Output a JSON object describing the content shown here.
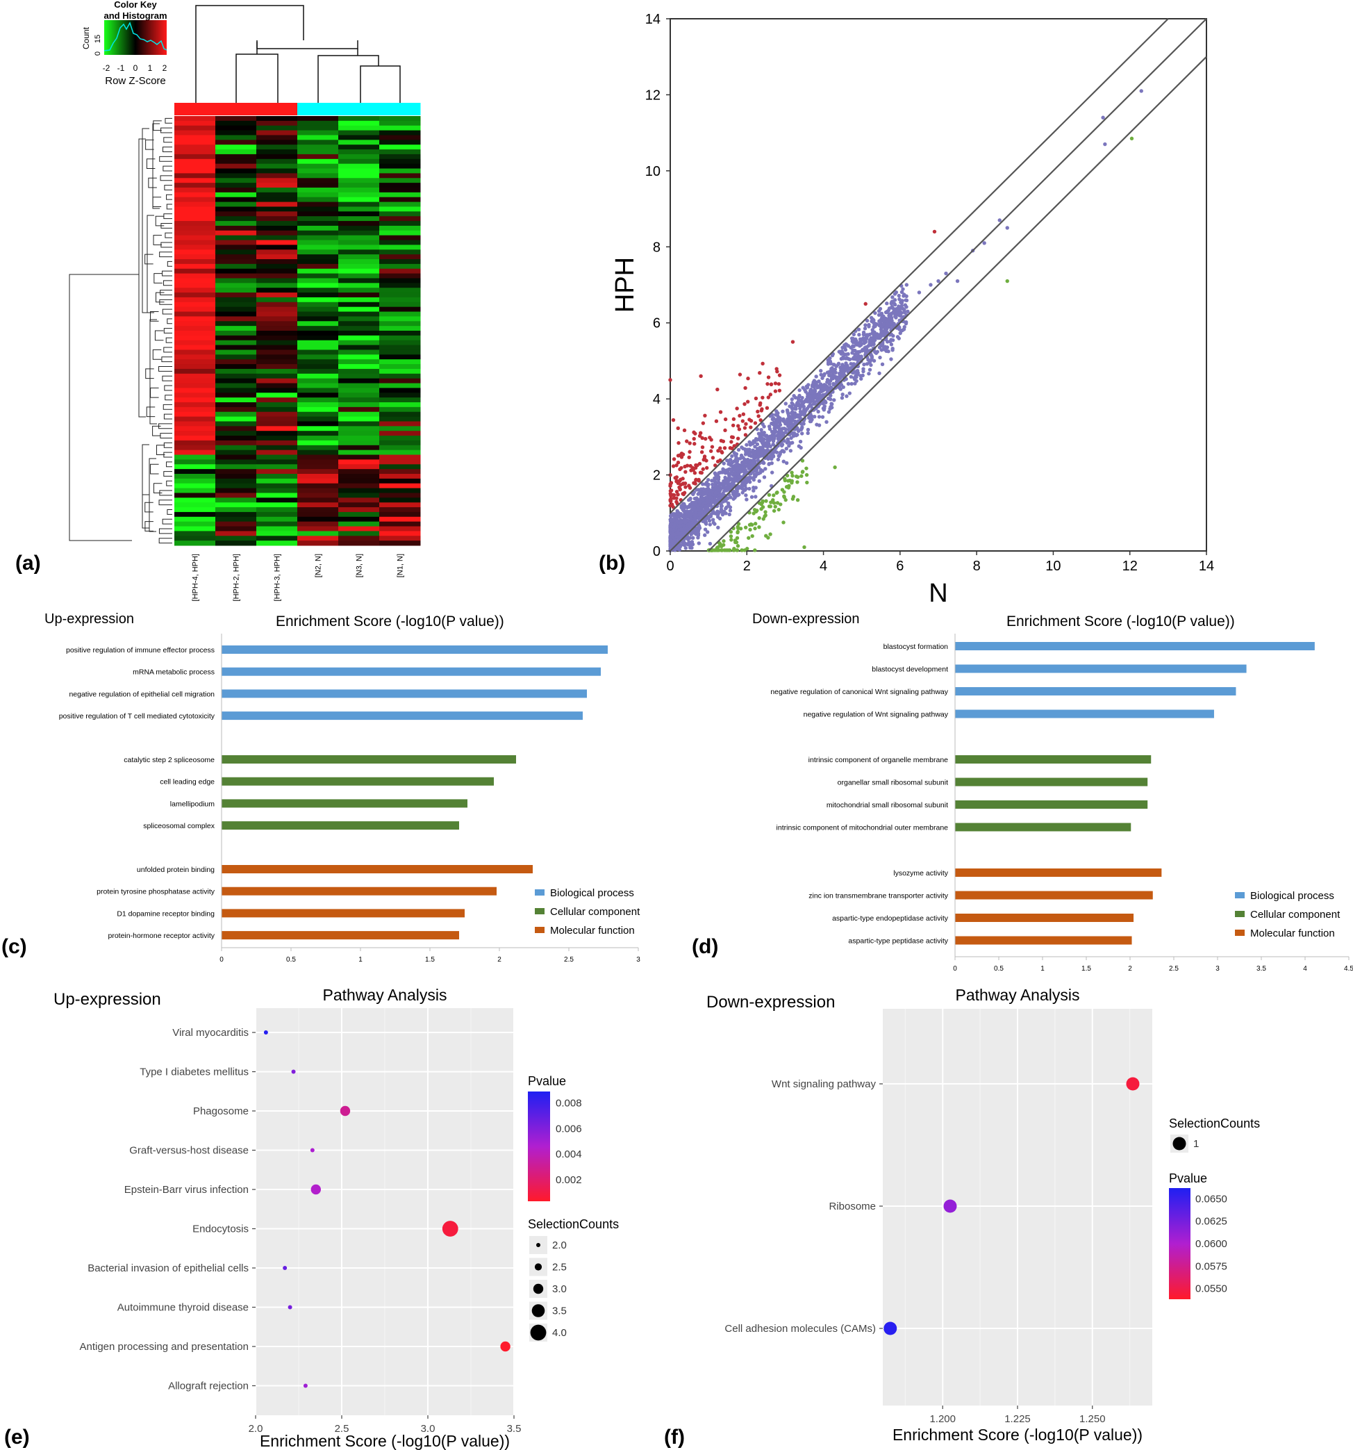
{
  "colors": {
    "heat_red": "#ff1a1a",
    "heat_black": "#000000",
    "heat_green": "#19ff19",
    "group_hph": "#ff1a1a",
    "group_n": "#00ffff",
    "scatter_up": "#c0303a",
    "scatter_mid": "#7b76bd",
    "scatter_down": "#6fae3f",
    "bp": "#5b9bd5",
    "cc": "#548235",
    "mf": "#c55a11",
    "ggplot_panel": "#ebebeb",
    "pval_high": "#1f1ff2",
    "pval_mid": "#b01fd0",
    "pval_low": "#ff1a2a"
  },
  "panel_labels": [
    "(a)",
    "(b)",
    "(c)",
    "(d)",
    "(e)",
    "(f)"
  ],
  "chart_data": [
    {
      "id": "a",
      "type": "heatmap",
      "color_key": {
        "title_line1": "Color Key",
        "title_line2": "and Histogram",
        "count_label": "Count",
        "count_ticks": [
          "0",
          "15"
        ],
        "ticks": [
          "-2",
          "-1",
          "0",
          "1",
          "2"
        ],
        "xlabel": "Row Z-Score"
      },
      "columns": [
        "[HPH-4, HPH]",
        "[HPH-2, HPH]",
        "[HPH-3, HPH]",
        "[N2, N]",
        "[N3, N]",
        "[N1, N]"
      ],
      "column_groups": [
        "HPH",
        "HPH",
        "HPH",
        "N",
        "N",
        "N"
      ],
      "row_count": 90,
      "block_pattern": {
        "upper_rows": 71,
        "upper_means": [
          1.8,
          -0.2,
          0.4,
          -0.9,
          -1.2,
          -0.7
        ],
        "lower_means": [
          -1.4,
          -0.5,
          -1.0,
          1.2,
          0.4,
          0.8
        ]
      }
    },
    {
      "id": "b",
      "type": "scatter",
      "xlabel": "N",
      "ylabel": "HPH",
      "xlim": [
        0,
        14
      ],
      "ylim": [
        0,
        14
      ],
      "xticks": [
        "0",
        "2",
        "4",
        "6",
        "8",
        "10",
        "12",
        "14"
      ],
      "yticks": [
        "0",
        "2",
        "4",
        "6",
        "8",
        "10",
        "12",
        "14"
      ],
      "reference_lines": [
        {
          "intercept": 1.0,
          "slope": 1
        },
        {
          "intercept": 0.0,
          "slope": 1
        },
        {
          "intercept": -1.0,
          "slope": 1
        }
      ],
      "series": [
        {
          "group": "up",
          "approx_points": 180,
          "notable": [
            [
              6.9,
              8.4
            ],
            [
              5.1,
              6.5
            ],
            [
              3.2,
              5.5
            ],
            [
              0.8,
              4.6
            ],
            [
              0.0,
              4.5
            ]
          ]
        },
        {
          "group": "unchanged",
          "approx_points": 2400,
          "notable": [
            [
              12.3,
              12.1
            ],
            [
              11.3,
              11.4
            ],
            [
              11.35,
              10.7
            ],
            [
              8.8,
              8.5
            ],
            [
              8.6,
              8.7
            ],
            [
              7.5,
              7.1
            ]
          ]
        },
        {
          "group": "down",
          "approx_points": 140,
          "notable": [
            [
              12.05,
              10.85
            ],
            [
              8.8,
              7.1
            ],
            [
              4.3,
              2.2
            ],
            [
              3.5,
              0.1
            ]
          ]
        }
      ]
    },
    {
      "id": "c",
      "type": "bar",
      "orientation": "horizontal",
      "corner_label": "Up-expression",
      "title": "Enrichment Score (-log10(P value))",
      "xlim": [
        0,
        3
      ],
      "xticks": [
        "0",
        "0.5",
        "1",
        "1.5",
        "2",
        "2.5",
        "3"
      ],
      "legend": [
        "Biological process",
        "Cellular component",
        "Molecular function"
      ],
      "groups": [
        {
          "category": "Biological process",
          "items": [
            {
              "label": "positive regulation of immune effector process",
              "value": 2.78
            },
            {
              "label": "mRNA metabolic process",
              "value": 2.73
            },
            {
              "label": "negative regulation of epithelial cell migration",
              "value": 2.63
            },
            {
              "label": "positive regulation of T cell mediated cytotoxicity",
              "value": 2.6
            }
          ]
        },
        {
          "category": "Cellular component",
          "items": [
            {
              "label": "catalytic step 2 spliceosome",
              "value": 2.12
            },
            {
              "label": "cell leading edge",
              "value": 1.96
            },
            {
              "label": "lamellipodium",
              "value": 1.77
            },
            {
              "label": "spliceosomal complex",
              "value": 1.71
            }
          ]
        },
        {
          "category": "Molecular function",
          "items": [
            {
              "label": "unfolded protein binding",
              "value": 2.24
            },
            {
              "label": "protein tyrosine phosphatase activity",
              "value": 1.98
            },
            {
              "label": "D1 dopamine receptor binding",
              "value": 1.75
            },
            {
              "label": "protein-hormone receptor activity",
              "value": 1.71
            }
          ]
        }
      ]
    },
    {
      "id": "d",
      "type": "bar",
      "orientation": "horizontal",
      "corner_label": "Down-expression",
      "title": "Enrichment Score (-log10(P value))",
      "xlim": [
        0,
        4.5
      ],
      "xticks": [
        "0",
        "0.5",
        "1",
        "1.5",
        "2",
        "2.5",
        "3",
        "3.5",
        "4",
        "4.5"
      ],
      "legend": [
        "Biological process",
        "Cellular component",
        "Molecular function"
      ],
      "groups": [
        {
          "category": "Biological process",
          "items": [
            {
              "label": "blastocyst formation",
              "value": 4.11
            },
            {
              "label": "blastocyst development",
              "value": 3.33
            },
            {
              "label": "negative regulation of canonical Wnt signaling pathway",
              "value": 3.21
            },
            {
              "label": "negative regulation of Wnt signaling pathway",
              "value": 2.96
            }
          ]
        },
        {
          "category": "Cellular component",
          "items": [
            {
              "label": "intrinsic component of organelle membrane",
              "value": 2.24
            },
            {
              "label": "organellar small ribosomal subunit",
              "value": 2.2
            },
            {
              "label": "mitochondrial small ribosomal subunit",
              "value": 2.2
            },
            {
              "label": "intrinsic component of mitochondrial outer membrane",
              "value": 2.01
            }
          ]
        },
        {
          "category": "Molecular function",
          "items": [
            {
              "label": "lysozyme activity",
              "value": 2.36
            },
            {
              "label": "zinc ion transmembrane transporter activity",
              "value": 2.26
            },
            {
              "label": "aspartic-type endopeptidase activity",
              "value": 2.04
            },
            {
              "label": "aspartic-type peptidase activity",
              "value": 2.02
            }
          ]
        }
      ]
    },
    {
      "id": "e",
      "type": "scatter",
      "corner_label": "Up-expression",
      "title": "Pathway Analysis",
      "xlabel": "Enrichment Score (-log10(P value))",
      "xlim": [
        2.0,
        3.5
      ],
      "xticks": [
        "2.0",
        "2.5",
        "3.0",
        "3.5"
      ],
      "points": [
        {
          "label": "Viral myocarditis",
          "x": 2.06,
          "pvalue": 0.0087,
          "counts": 2
        },
        {
          "label": "Type I diabetes mellitus",
          "x": 2.22,
          "pvalue": 0.006,
          "counts": 2
        },
        {
          "label": "Phagosome",
          "x": 2.52,
          "pvalue": 0.003,
          "counts": 3
        },
        {
          "label": "Graft-versus-host disease",
          "x": 2.33,
          "pvalue": 0.0047,
          "counts": 2
        },
        {
          "label": "Epstein-Barr virus infection",
          "x": 2.35,
          "pvalue": 0.0045,
          "counts": 3
        },
        {
          "label": "Endocytosis",
          "x": 3.13,
          "pvalue": 0.0008,
          "counts": 4
        },
        {
          "label": "Bacterial invasion of epithelial cells",
          "x": 2.17,
          "pvalue": 0.0068,
          "counts": 2
        },
        {
          "label": "Autoimmune thyroid disease",
          "x": 2.2,
          "pvalue": 0.0063,
          "counts": 2
        },
        {
          "label": "Antigen processing and presentation",
          "x": 3.45,
          "pvalue": 0.00035,
          "counts": 3
        },
        {
          "label": "Allograft rejection",
          "x": 2.29,
          "pvalue": 0.0051,
          "counts": 2
        }
      ],
      "legend_pvalue": {
        "title": "Pvalue",
        "ticks": [
          "0.008",
          "0.006",
          "0.004",
          "0.002"
        ],
        "range": [
          0.0003,
          0.0089
        ]
      },
      "legend_counts": {
        "title": "SelectionCounts",
        "items": [
          "2.0",
          "2.5",
          "3.0",
          "3.5",
          "4.0"
        ]
      }
    },
    {
      "id": "f",
      "type": "scatter",
      "corner_label": "Down-expression",
      "title": "Pathway Analysis",
      "xlabel": "Enrichment Score (-log10(P value))",
      "xlim": [
        1.18,
        1.27
      ],
      "xticks": [
        "1.200",
        "1.225",
        "1.250"
      ],
      "points": [
        {
          "label": "Wnt signaling pathway",
          "x": 1.2635,
          "pvalue": 0.0545,
          "counts": 1
        },
        {
          "label": "Ribosome",
          "x": 1.2025,
          "pvalue": 0.0612,
          "counts": 1
        },
        {
          "label": "Cell adhesion molecules (CAMs)",
          "x": 1.1825,
          "pvalue": 0.0658,
          "counts": 1
        }
      ],
      "legend_counts": {
        "title": "SelectionCounts",
        "items": [
          "1"
        ]
      },
      "legend_pvalue": {
        "title": "Pvalue",
        "ticks": [
          "0.0650",
          "0.0625",
          "0.0600",
          "0.0575",
          "0.0550"
        ],
        "range": [
          0.0538,
          0.0662
        ]
      }
    }
  ]
}
